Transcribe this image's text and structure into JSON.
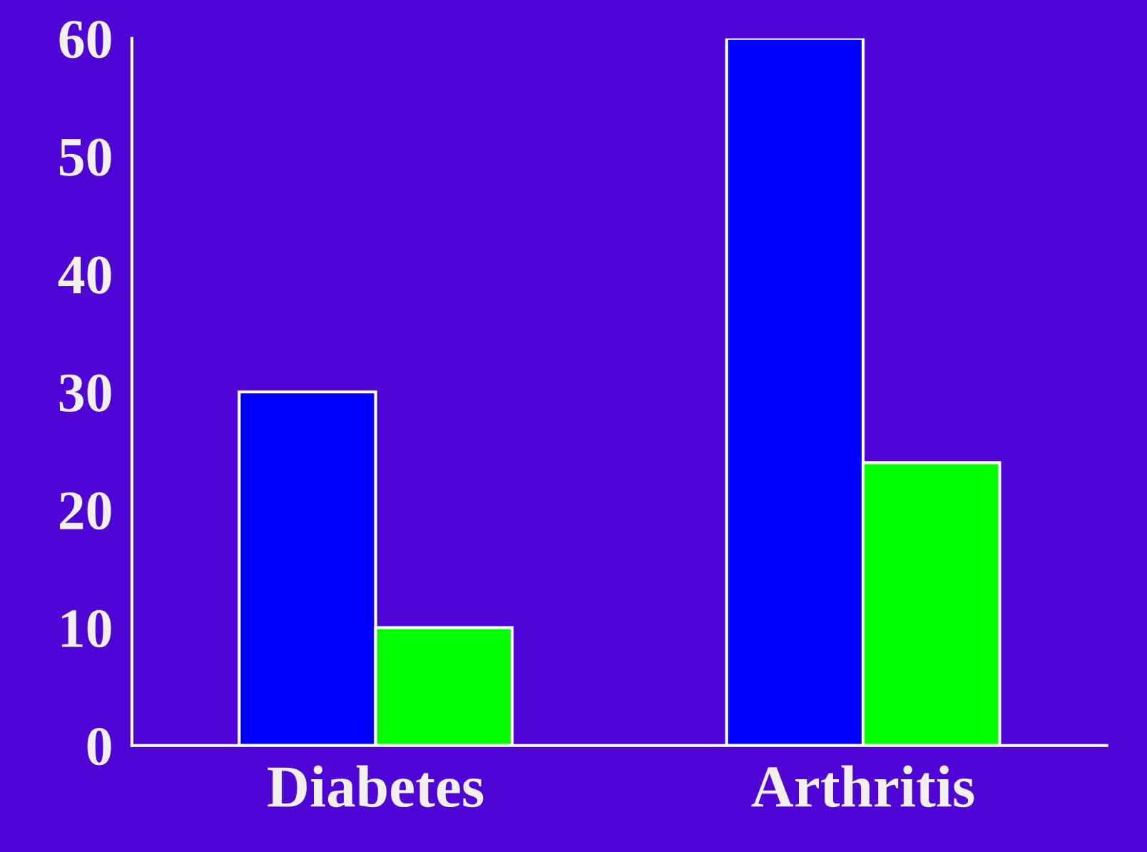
{
  "chart_data": {
    "type": "bar",
    "categories": [
      "Diabetes",
      "Arthritis"
    ],
    "series": [
      {
        "color": "#0000ff",
        "values": [
          30,
          60
        ]
      },
      {
        "color": "#00ff00",
        "values": [
          10,
          24
        ]
      }
    ],
    "ylim": [
      0,
      60
    ],
    "yticks": [
      0,
      10,
      20,
      30,
      40,
      50,
      60
    ],
    "grid": false,
    "legend": false
  }
}
